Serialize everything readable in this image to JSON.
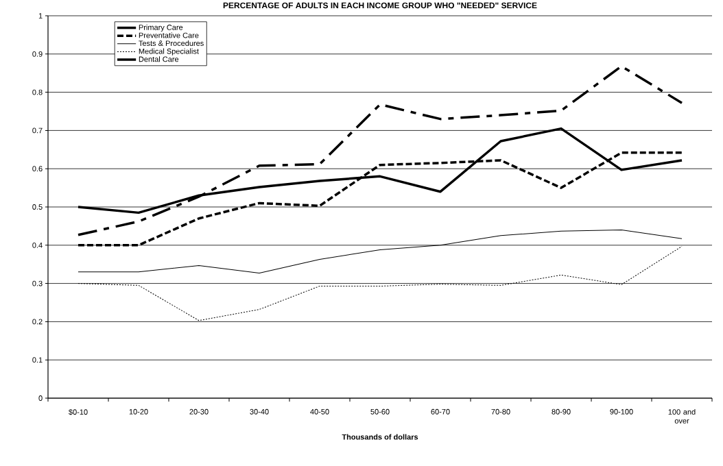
{
  "chart_data": {
    "type": "line",
    "title": "PERCENTAGE OF ADULTS IN EACH INCOME GROUP WHO \"NEEDED\" SERVICE",
    "xlabel": "Thousands of dollars",
    "categories": [
      "$0-10",
      "10-20",
      "20-30",
      "30-40",
      "40-50",
      "50-60",
      "60-70",
      "70-80",
      "80-90",
      "90-100",
      "100 and over"
    ],
    "series": [
      {
        "name": "Primary Care",
        "color": "#000000",
        "line_style": "solid",
        "values": [
          0.5,
          0.485,
          0.53,
          0.552,
          0.568,
          0.58,
          0.54,
          0.672,
          0.705,
          0.597,
          0.622
        ]
      },
      {
        "name": "Preventative Care",
        "color": "#000000",
        "line_style": "dashed",
        "values": [
          0.4,
          0.4,
          0.47,
          0.51,
          0.503,
          0.61,
          0.615,
          0.622,
          0.55,
          0.642,
          0.642
        ]
      },
      {
        "name": "Tests & Procedures",
        "color": "#000000",
        "line_style": "solid",
        "values": [
          0.33,
          0.33,
          0.347,
          0.327,
          0.363,
          0.388,
          0.4,
          0.425,
          0.437,
          0.44,
          0.417
        ]
      },
      {
        "name": "Medical Specialist",
        "color": "#000000",
        "line_style": "dotted",
        "values": [
          0.3,
          0.295,
          0.203,
          0.232,
          0.293,
          0.293,
          0.298,
          0.295,
          0.322,
          0.297,
          0.397
        ]
      },
      {
        "name": "Dental Care",
        "color": "#000000",
        "line_style": "dashed",
        "values": [
          0.427,
          0.462,
          0.527,
          0.608,
          0.612,
          0.768,
          0.73,
          0.74,
          0.752,
          0.868,
          0.772
        ]
      }
    ],
    "ylim": [
      0,
      1
    ],
    "yticks": [
      0,
      0.1,
      0.2,
      0.3,
      0.4,
      0.5,
      0.6,
      0.7,
      0.8,
      0.9,
      1
    ],
    "grid": "y",
    "legend": "top left"
  }
}
